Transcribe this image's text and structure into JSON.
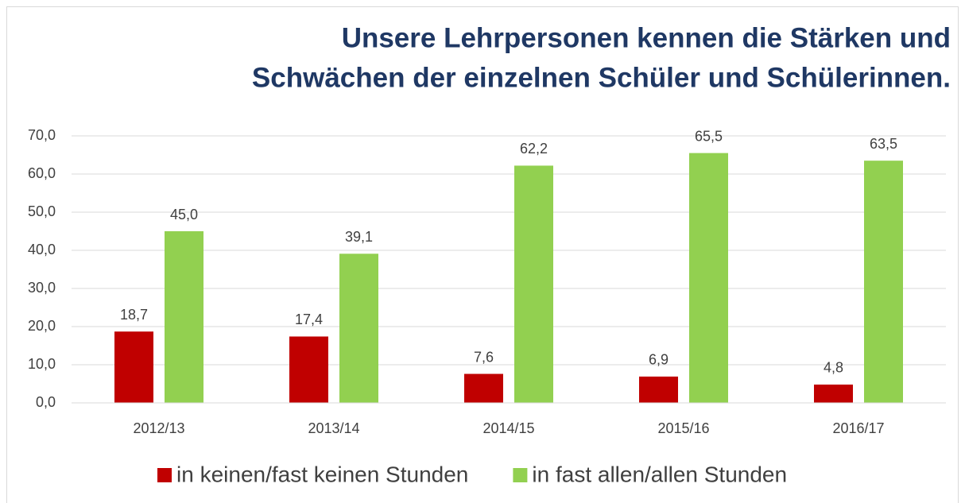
{
  "chart_data": {
    "type": "bar",
    "title": [
      "Unsere Lehrpersonen kennen die Stärken und",
      "Schwächen der einzelnen Schüler und Schülerinnen."
    ],
    "categories": [
      "2012/13",
      "2013/14",
      "2014/15",
      "2015/16",
      "2016/17"
    ],
    "series": [
      {
        "name": "in keinen/fast keinen Stunden",
        "color": "#c00000",
        "values": [
          18.7,
          17.4,
          7.6,
          6.9,
          4.8
        ],
        "value_labels": [
          "18,7",
          "17,4",
          "7,6",
          "6,9",
          "4,8"
        ]
      },
      {
        "name": "in fast allen/allen Stunden",
        "color": "#92d050",
        "values": [
          45.0,
          39.1,
          62.2,
          65.5,
          63.5
        ],
        "value_labels": [
          "45,0",
          "39,1",
          "62,2",
          "65,5",
          "63,5"
        ]
      }
    ],
    "ylim": [
      0,
      70
    ],
    "yticks": [
      {
        "value": 0,
        "label": "0,0"
      },
      {
        "value": 10,
        "label": "10,0"
      },
      {
        "value": 20,
        "label": "20,0"
      },
      {
        "value": 30,
        "label": "30,0"
      },
      {
        "value": 40,
        "label": "40,0"
      },
      {
        "value": 50,
        "label": "50,0"
      },
      {
        "value": 60,
        "label": "60,0"
      },
      {
        "value": 70,
        "label": "70,0"
      }
    ],
    "grid": true,
    "legend": "bottom"
  }
}
